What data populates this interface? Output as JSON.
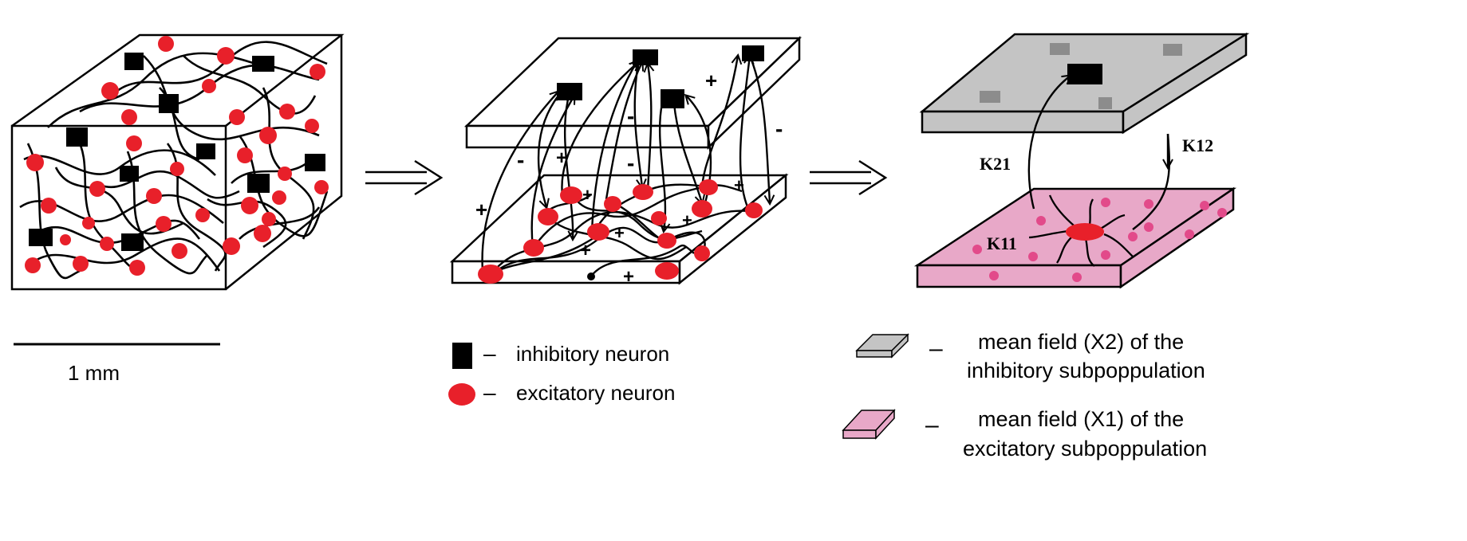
{
  "scale_bar": {
    "label": "1 mm"
  },
  "legend": {
    "inhibitory": {
      "dash": "–",
      "label": "inhibitory neuron"
    },
    "excitatory": {
      "dash": "–",
      "label": "excitatory neuron"
    },
    "inhibitory_field": {
      "dash": "–",
      "line1": "mean field  (X2)  of the",
      "line2": "inhibitory subpoppulation"
    },
    "excitatory_field": {
      "dash": "–",
      "line1": "mean field  (X1)  of the",
      "line2": "excitatory subpoppulation"
    }
  },
  "panel3": {
    "k21": "K21",
    "k12": "K12",
    "k11": "K11"
  },
  "signs": {
    "plus": "+",
    "minus": "-"
  },
  "colors": {
    "excitatory": "#e8202a",
    "inhibitory": "#000000",
    "inhibitory_field": "#c4c4c4",
    "excitatory_field": "#e8a8c8"
  }
}
